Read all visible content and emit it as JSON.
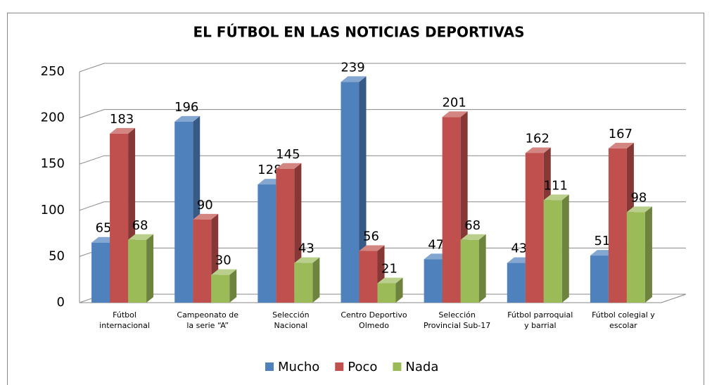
{
  "chart_data": {
    "type": "bar3d",
    "title": "EL FÚTBOL EN LAS NOTICIAS DEPORTIVAS",
    "categories": [
      "Fútbol internacional",
      "Campeonato de la serie “A”",
      "Selección Nacional",
      "Centro Deportivo Olmedo",
      "Selección Provincial Sub-17",
      "Fútbol parroquial y barrial",
      "Fútbol colegial y escolar"
    ],
    "series": [
      {
        "name": "Mucho",
        "color": "#4f81bd",
        "values": [
          65,
          196,
          128,
          239,
          47,
          43,
          51
        ]
      },
      {
        "name": "Poco",
        "color": "#c0504d",
        "values": [
          183,
          90,
          145,
          56,
          201,
          162,
          167
        ]
      },
      {
        "name": "Nada",
        "color": "#9bbb59",
        "values": [
          68,
          30,
          43,
          21,
          68,
          111,
          98
        ]
      }
    ],
    "ylim": [
      0,
      250
    ],
    "yticks": [
      0,
      50,
      100,
      150,
      200,
      250
    ],
    "grid": true,
    "legend": "bottom"
  }
}
